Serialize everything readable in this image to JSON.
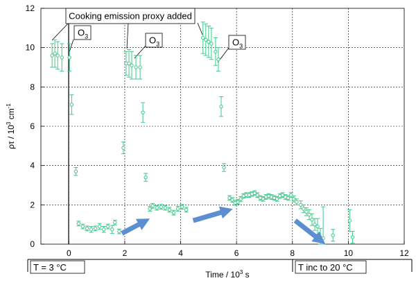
{
  "chart_data": {
    "type": "scatter",
    "title": "",
    "xlabel": "Time / 10",
    "xlabel_sup": "3",
    "xlabel_unit": " s",
    "ylabel": "ρτ / 10",
    "ylabel_sup": "3",
    "ylabel_unit": " cm",
    "ylabel_sup2": "-1",
    "xlim": [
      -1,
      12
    ],
    "ylim": [
      0,
      12
    ],
    "x_ticks": [
      0,
      2,
      4,
      6,
      8,
      10,
      12
    ],
    "y_ticks": [
      0,
      2,
      4,
      6,
      8,
      10,
      12
    ],
    "grid": true,
    "marker_color": "#3cc98a",
    "arrow_color": "#5b8fd0",
    "series": [
      {
        "points": [
          {
            "x": -0.6,
            "y": 9.6,
            "err": 0.6
          },
          {
            "x": -0.5,
            "y": 9.7,
            "err": 0.7
          },
          {
            "x": -0.4,
            "y": 9.6,
            "err": 0.7
          },
          {
            "x": -0.25,
            "y": 9.5,
            "err": 0.7
          },
          {
            "x": 0.02,
            "y": 9.5,
            "err": 0.7
          },
          {
            "x": 0.1,
            "y": 7.1,
            "err": 0.5
          },
          {
            "x": 0.25,
            "y": 3.7,
            "err": 0.2
          },
          {
            "x": 0.35,
            "y": 1.05,
            "err": 0.12
          },
          {
            "x": 0.5,
            "y": 0.9,
            "err": 0.12
          },
          {
            "x": 0.65,
            "y": 0.8,
            "err": 0.12
          },
          {
            "x": 0.8,
            "y": 0.75,
            "err": 0.15
          },
          {
            "x": 0.95,
            "y": 0.8,
            "err": 0.12
          },
          {
            "x": 1.1,
            "y": 0.9,
            "err": 0.15
          },
          {
            "x": 1.25,
            "y": 0.75,
            "err": 0.15
          },
          {
            "x": 1.4,
            "y": 0.9,
            "err": 0.12
          },
          {
            "x": 1.55,
            "y": 0.75,
            "err": 0.2
          },
          {
            "x": 1.65,
            "y": 1.1,
            "err": 0.12
          },
          {
            "x": 1.8,
            "y": 0.65,
            "err": 0.12
          },
          {
            "x": 1.95,
            "y": 4.9,
            "err": 0.3
          },
          {
            "x": 2.05,
            "y": 9.2,
            "err": 0.6
          },
          {
            "x": 2.15,
            "y": 9.2,
            "err": 0.7
          },
          {
            "x": 2.25,
            "y": 9.1,
            "err": 0.7
          },
          {
            "x": 2.4,
            "y": 9.0,
            "err": 0.6
          },
          {
            "x": 2.55,
            "y": 9.0,
            "err": 0.6
          },
          {
            "x": 2.65,
            "y": 6.7,
            "err": 0.5
          },
          {
            "x": 2.75,
            "y": 3.4,
            "err": 0.2
          },
          {
            "x": 2.9,
            "y": 1.8,
            "err": 0.12
          },
          {
            "x": 3.0,
            "y": 1.95,
            "err": 0.12
          },
          {
            "x": 3.15,
            "y": 1.85,
            "err": 0.12
          },
          {
            "x": 3.3,
            "y": 1.9,
            "err": 0.12
          },
          {
            "x": 3.45,
            "y": 1.85,
            "err": 0.12
          },
          {
            "x": 3.6,
            "y": 1.75,
            "err": 0.12
          },
          {
            "x": 3.75,
            "y": 1.6,
            "err": 0.12
          },
          {
            "x": 3.9,
            "y": 1.8,
            "err": 0.12
          },
          {
            "x": 4.05,
            "y": 1.9,
            "err": 0.12
          },
          {
            "x": 4.2,
            "y": 1.75,
            "err": 0.12
          },
          {
            "x": 4.8,
            "y": 10.5,
            "err": 0.8
          },
          {
            "x": 4.9,
            "y": 10.4,
            "err": 0.8
          },
          {
            "x": 5.0,
            "y": 10.3,
            "err": 0.8
          },
          {
            "x": 5.1,
            "y": 10.2,
            "err": 0.8
          },
          {
            "x": 5.25,
            "y": 9.8,
            "err": 0.7
          },
          {
            "x": 5.35,
            "y": 9.4,
            "err": 0.6
          },
          {
            "x": 5.45,
            "y": 7.0,
            "err": 0.5
          },
          {
            "x": 5.55,
            "y": 3.9,
            "err": 0.2
          },
          {
            "x": 5.75,
            "y": 2.35,
            "err": 0.12
          },
          {
            "x": 5.85,
            "y": 2.25,
            "err": 0.12
          },
          {
            "x": 5.95,
            "y": 2.1,
            "err": 0.12
          },
          {
            "x": 6.05,
            "y": 2.15,
            "err": 0.12
          },
          {
            "x": 6.15,
            "y": 2.3,
            "err": 0.12
          },
          {
            "x": 6.25,
            "y": 2.45,
            "err": 0.12
          },
          {
            "x": 6.35,
            "y": 2.5,
            "err": 0.12
          },
          {
            "x": 6.45,
            "y": 2.5,
            "err": 0.12
          },
          {
            "x": 6.55,
            "y": 2.55,
            "err": 0.12
          },
          {
            "x": 6.65,
            "y": 2.6,
            "err": 0.12
          },
          {
            "x": 6.75,
            "y": 2.5,
            "err": 0.12
          },
          {
            "x": 6.85,
            "y": 2.35,
            "err": 0.12
          },
          {
            "x": 6.95,
            "y": 2.3,
            "err": 0.12
          },
          {
            "x": 7.05,
            "y": 2.4,
            "err": 0.12
          },
          {
            "x": 7.15,
            "y": 2.45,
            "err": 0.12
          },
          {
            "x": 7.25,
            "y": 2.4,
            "err": 0.12
          },
          {
            "x": 7.35,
            "y": 2.35,
            "err": 0.12
          },
          {
            "x": 7.45,
            "y": 2.3,
            "err": 0.12
          },
          {
            "x": 7.55,
            "y": 2.45,
            "err": 0.12
          },
          {
            "x": 7.65,
            "y": 2.5,
            "err": 0.12
          },
          {
            "x": 7.75,
            "y": 2.4,
            "err": 0.12
          },
          {
            "x": 7.85,
            "y": 2.35,
            "err": 0.12
          },
          {
            "x": 7.95,
            "y": 2.5,
            "err": 0.12
          },
          {
            "x": 8.05,
            "y": 2.3,
            "err": 0.15
          },
          {
            "x": 8.15,
            "y": 2.15,
            "err": 0.15
          },
          {
            "x": 8.3,
            "y": 2.0,
            "err": 0.2
          },
          {
            "x": 8.4,
            "y": 1.8,
            "err": 0.2
          },
          {
            "x": 8.5,
            "y": 1.65,
            "err": 0.2
          },
          {
            "x": 8.6,
            "y": 1.5,
            "err": 0.25
          },
          {
            "x": 8.7,
            "y": 1.25,
            "err": 0.3
          },
          {
            "x": 8.8,
            "y": 1.0,
            "err": 0.3
          },
          {
            "x": 8.9,
            "y": 0.9,
            "err": 0.4
          },
          {
            "x": 9.0,
            "y": 0.3,
            "err": 0.5
          },
          {
            "x": 9.1,
            "y": 0.3,
            "err": 1.6
          },
          {
            "x": 9.45,
            "y": 0.45,
            "err": 0.3
          },
          {
            "x": 10.05,
            "y": 1.2,
            "err": 0.55
          },
          {
            "x": 10.15,
            "y": 0.35,
            "err": 0.3
          }
        ]
      }
    ],
    "annotations": {
      "cooking": "Cooking emission proxy added",
      "o3_label": "O",
      "o3_sub": "3",
      "cold_label": "T = 3 °C",
      "warm_label": "T inc to 20 °C"
    }
  }
}
